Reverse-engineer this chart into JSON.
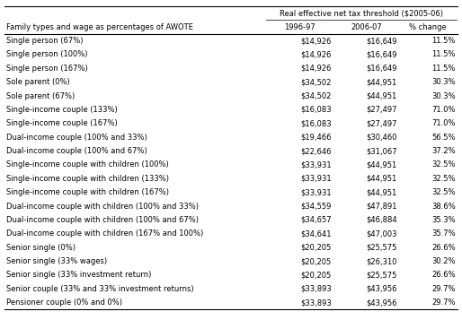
{
  "col_header_top": "Real effective net tax threshold ($2005-06)",
  "col_headers": [
    "1996-97",
    "2006-07",
    "% change"
  ],
  "row_header": "Family types and wage as percentages of AWOTE",
  "rows": [
    [
      "Single person (67%)",
      "$14,926",
      "$16,649",
      "11.5%"
    ],
    [
      "Single person (100%)",
      "$14,926",
      "$16,649",
      "11.5%"
    ],
    [
      "Single person (167%)",
      "$14,926",
      "$16,649",
      "11.5%"
    ],
    [
      "Sole parent (0%)",
      "$34,502",
      "$44,951",
      "30.3%"
    ],
    [
      "Sole parent (67%)",
      "$34,502",
      "$44,951",
      "30.3%"
    ],
    [
      "Single-income couple (133%)",
      "$16,083",
      "$27,497",
      "71.0%"
    ],
    [
      "Single-income couple (167%)",
      "$16,083",
      "$27,497",
      "71.0%"
    ],
    [
      "Dual-income couple (100% and 33%)",
      "$19,466",
      "$30,460",
      "56.5%"
    ],
    [
      "Dual-income couple (100% and 67%)",
      "$22,646",
      "$31,067",
      "37.2%"
    ],
    [
      "Single-income couple with children (100%)",
      "$33,931",
      "$44,951",
      "32.5%"
    ],
    [
      "Single-income couple with children (133%)",
      "$33,931",
      "$44,951",
      "32.5%"
    ],
    [
      "Single-income couple with children (167%)",
      "$33,931",
      "$44,951",
      "32.5%"
    ],
    [
      "Dual-income couple with children (100% and 33%)",
      "$34,559",
      "$47,891",
      "38.6%"
    ],
    [
      "Dual-income couple with children (100% and 67%)",
      "$34,657",
      "$46,884",
      "35.3%"
    ],
    [
      "Dual-income couple with children (167% and 100%)",
      "$34,641",
      "$47,003",
      "35.7%"
    ],
    [
      "Senior single (0%)",
      "$20,205",
      "$25,575",
      "26.6%"
    ],
    [
      "Senior single (33% wages)",
      "$20,205",
      "$26,310",
      "30.2%"
    ],
    [
      "Senior single (33% investment return)",
      "$20,205",
      "$25,575",
      "26.6%"
    ],
    [
      "Senior couple (33% and 33% investment returns)",
      "$33,893",
      "$43,956",
      "29.7%"
    ],
    [
      "Pensioner couple (0% and 0%)",
      "$33,893",
      "$43,956",
      "29.7%"
    ]
  ],
  "bg_color": "#ffffff",
  "text_color": "#000000",
  "font_size": 6.0,
  "header_font_size": 6.0,
  "fig_width": 5.14,
  "fig_height": 3.57,
  "dpi": 100
}
